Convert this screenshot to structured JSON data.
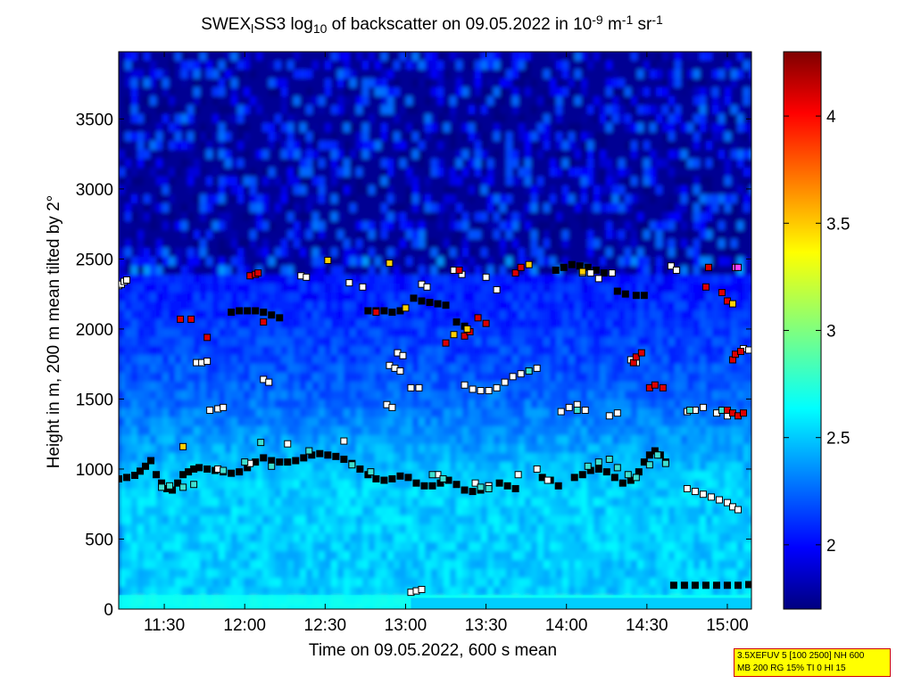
{
  "chart_data": {
    "type": "heatmap",
    "title": {
      "parts": [
        {
          "t": "SWEX",
          "s": "n"
        },
        {
          "t": "l",
          "s": "sub"
        },
        {
          "t": "SS3 log",
          "s": "n"
        },
        {
          "t": "10",
          "s": "sub"
        },
        {
          "t": " of backscatter on 09.05.2022 in 10",
          "s": "n"
        },
        {
          "t": "-9",
          "s": "sup"
        },
        {
          "t": " m",
          "s": "n"
        },
        {
          "t": "-1",
          "s": "sup"
        },
        {
          "t": " sr",
          "s": "n"
        },
        {
          "t": "-1",
          "s": "sup"
        }
      ]
    },
    "xlabel": "Time on 09.05.2022, 600 s mean",
    "ylabel": "Height in m, 200 m mean tilted by 2°",
    "x_ticks": [
      {
        "label": "11:30",
        "value": 690
      },
      {
        "label": "12:00",
        "value": 720
      },
      {
        "label": "12:30",
        "value": 750
      },
      {
        "label": "13:00",
        "value": 780
      },
      {
        "label": "13:30",
        "value": 810
      },
      {
        "label": "14:00",
        "value": 840
      },
      {
        "label": "14:30",
        "value": 870
      },
      {
        "label": "15:00",
        "value": 900
      }
    ],
    "xlim_minutes": [
      673,
      909
    ],
    "ylim": [
      0,
      3980
    ],
    "y_ticks": [
      0,
      500,
      1000,
      1500,
      2000,
      2500,
      3000,
      3500
    ],
    "colorbar": {
      "range": [
        1.7,
        4.3
      ],
      "ticks": [
        "2",
        "2.5",
        "3",
        "3.5",
        "4"
      ],
      "tick_values": [
        2,
        2.5,
        3,
        3.5,
        4
      ]
    },
    "colormap": "jet",
    "regions": [
      {
        "name": "surface-layer",
        "y": [
          0,
          100
        ],
        "value": 2.72
      },
      {
        "name": "boundary-layer",
        "y": [
          100,
          900
        ],
        "value": 2.55
      },
      {
        "name": "transition",
        "y": [
          900,
          1600
        ],
        "value": 2.35
      },
      {
        "name": "free-troposphere",
        "y": [
          1600,
          2500
        ],
        "value": 2.15
      },
      {
        "name": "upper",
        "y": [
          2500,
          3980
        ],
        "value": 1.85
      }
    ],
    "series": [
      {
        "name": "layer-1000m",
        "color": "#000000",
        "points": [
          [
            673,
            930
          ],
          [
            676,
            940
          ],
          [
            679,
            955
          ],
          [
            681,
            985
          ],
          [
            683,
            1020
          ],
          [
            685,
            1060
          ],
          [
            687,
            960
          ],
          [
            689,
            900
          ],
          [
            691,
            860
          ],
          [
            693,
            850
          ],
          [
            695,
            900
          ],
          [
            697,
            960
          ],
          [
            699,
            980
          ],
          [
            701,
            1000
          ],
          [
            703,
            1010
          ],
          [
            706,
            1000
          ],
          [
            709,
            990
          ],
          [
            712,
            980
          ],
          [
            715,
            970
          ],
          [
            718,
            980
          ],
          [
            721,
            1010
          ],
          [
            724,
            1050
          ],
          [
            727,
            1080
          ],
          [
            730,
            1060
          ],
          [
            733,
            1050
          ],
          [
            736,
            1050
          ],
          [
            739,
            1060
          ],
          [
            742,
            1080
          ],
          [
            745,
            1100
          ],
          [
            748,
            1110
          ],
          [
            751,
            1100
          ],
          [
            754,
            1090
          ],
          [
            757,
            1070
          ],
          [
            760,
            1040
          ],
          [
            763,
            1000
          ],
          [
            766,
            960
          ],
          [
            769,
            930
          ],
          [
            772,
            920
          ],
          [
            775,
            930
          ],
          [
            778,
            950
          ],
          [
            781,
            940
          ],
          [
            784,
            900
          ],
          [
            787,
            880
          ],
          [
            790,
            880
          ],
          [
            793,
            900
          ],
          [
            796,
            920
          ],
          [
            799,
            890
          ],
          [
            802,
            850
          ],
          [
            805,
            840
          ],
          [
            808,
            850
          ],
          [
            811,
            880
          ],
          [
            815,
            900
          ],
          [
            818,
            880
          ],
          [
            821,
            860
          ],
          [
            831,
            940
          ],
          [
            834,
            920
          ],
          [
            837,
            880
          ],
          [
            843,
            940
          ],
          [
            846,
            960
          ],
          [
            849,
            990
          ],
          [
            852,
            1000
          ],
          [
            855,
            980
          ],
          [
            858,
            940
          ],
          [
            861,
            900
          ],
          [
            864,
            920
          ],
          [
            867,
            980
          ],
          [
            869,
            1050
          ],
          [
            871,
            1100
          ],
          [
            873,
            1130
          ],
          [
            875,
            1100
          ],
          [
            877,
            1050
          ]
        ]
      },
      {
        "name": "layer-1000m-lower",
        "color": "#ffffff",
        "points": [
          [
            885,
            860
          ],
          [
            888,
            840
          ],
          [
            891,
            820
          ],
          [
            894,
            800
          ],
          [
            897,
            780
          ],
          [
            900,
            760
          ],
          [
            902,
            730
          ],
          [
            904,
            710
          ]
        ]
      },
      {
        "name": "surface-trace",
        "color": "#000000",
        "points": [
          [
            880,
            170
          ],
          [
            884,
            170
          ],
          [
            888,
            170
          ],
          [
            892,
            170
          ],
          [
            896,
            170
          ],
          [
            900,
            170
          ],
          [
            904,
            170
          ],
          [
            908,
            175
          ]
        ]
      },
      {
        "name": "surface-trace-early",
        "color": "#ffffff",
        "points": [
          [
            782,
            120
          ],
          [
            784,
            130
          ],
          [
            786,
            140
          ]
        ]
      },
      {
        "name": "layer-2100m",
        "color": "#000000",
        "points": [
          [
            715,
            2120
          ],
          [
            718,
            2130
          ],
          [
            721,
            2130
          ],
          [
            724,
            2130
          ],
          [
            727,
            2120
          ],
          [
            730,
            2100
          ],
          [
            733,
            2080
          ],
          [
            766,
            2130
          ],
          [
            769,
            2130
          ],
          [
            772,
            2130
          ],
          [
            775,
            2120
          ],
          [
            778,
            2130
          ],
          [
            783,
            2220
          ],
          [
            786,
            2200
          ],
          [
            789,
            2190
          ],
          [
            792,
            2180
          ],
          [
            795,
            2170
          ],
          [
            799,
            2050
          ],
          [
            802,
            2020
          ],
          [
            836,
            2420
          ],
          [
            839,
            2440
          ],
          [
            842,
            2460
          ],
          [
            845,
            2450
          ],
          [
            848,
            2440
          ],
          [
            851,
            2420
          ],
          [
            854,
            2400
          ],
          [
            859,
            2270
          ],
          [
            862,
            2250
          ],
          [
            866,
            2240
          ],
          [
            869,
            2240
          ]
        ]
      },
      {
        "name": "layer-1600m",
        "color": "#ffffff",
        "points": [
          [
            782,
            1580
          ],
          [
            785,
            1580
          ],
          [
            802,
            1600
          ],
          [
            805,
            1570
          ],
          [
            808,
            1560
          ],
          [
            811,
            1560
          ],
          [
            814,
            1580
          ],
          [
            817,
            1620
          ],
          [
            820,
            1660
          ],
          [
            823,
            1680
          ],
          [
            826,
            1700
          ],
          [
            829,
            1720
          ]
        ]
      },
      {
        "name": "layer-1400m",
        "color": "#ffffff",
        "points": [
          [
            707,
            1420
          ],
          [
            710,
            1430
          ],
          [
            712,
            1440
          ],
          [
            773,
            1460
          ],
          [
            775,
            1440
          ],
          [
            838,
            1410
          ],
          [
            841,
            1440
          ],
          [
            844,
            1460
          ],
          [
            847,
            1420
          ],
          [
            856,
            1380
          ],
          [
            859,
            1400
          ],
          [
            885,
            1410
          ],
          [
            888,
            1420
          ],
          [
            891,
            1440
          ],
          [
            896,
            1400
          ],
          [
            900,
            1380
          ]
        ]
      },
      {
        "name": "sparse-white",
        "color": "#ffffff",
        "points": [
          [
            673,
            2310
          ],
          [
            674,
            2320
          ],
          [
            675,
            2340
          ],
          [
            676,
            2350
          ],
          [
            702,
            1760
          ],
          [
            704,
            1760
          ],
          [
            706,
            1770
          ],
          [
            727,
            1640
          ],
          [
            729,
            1620
          ],
          [
            741,
            2380
          ],
          [
            743,
            2370
          ],
          [
            759,
            2330
          ],
          [
            764,
            2300
          ],
          [
            777,
            1830
          ],
          [
            779,
            1810
          ],
          [
            774,
            1740
          ],
          [
            776,
            1720
          ],
          [
            778,
            1700
          ],
          [
            786,
            2320
          ],
          [
            788,
            2300
          ],
          [
            798,
            2420
          ],
          [
            801,
            2390
          ],
          [
            810,
            2370
          ],
          [
            814,
            2280
          ],
          [
            846,
            2400
          ],
          [
            849,
            2400
          ],
          [
            852,
            2360
          ],
          [
            857,
            2400
          ],
          [
            864,
            1780
          ],
          [
            866,
            1760
          ],
          [
            879,
            2450
          ],
          [
            881,
            2420
          ],
          [
            906,
            1860
          ],
          [
            908,
            1850
          ],
          [
            710,
            1000
          ],
          [
            722,
            1040
          ],
          [
            736,
            1180
          ],
          [
            757,
            1200
          ],
          [
            792,
            960
          ],
          [
            806,
            900
          ],
          [
            811,
            880
          ],
          [
            822,
            960
          ],
          [
            829,
            1000
          ],
          [
            833,
            920
          ]
        ]
      },
      {
        "name": "teal-markers",
        "color": "#3fe0d0",
        "points": [
          [
            689,
            870
          ],
          [
            692,
            880
          ],
          [
            697,
            870
          ],
          [
            701,
            890
          ],
          [
            712,
            990
          ],
          [
            720,
            1050
          ],
          [
            726,
            1190
          ],
          [
            730,
            1020
          ],
          [
            744,
            1130
          ],
          [
            760,
            1030
          ],
          [
            767,
            980
          ],
          [
            790,
            960
          ],
          [
            794,
            930
          ],
          [
            808,
            870
          ],
          [
            811,
            860
          ],
          [
            826,
            1700
          ],
          [
            844,
            1420
          ],
          [
            848,
            1020
          ],
          [
            852,
            1050
          ],
          [
            856,
            1070
          ],
          [
            859,
            1010
          ],
          [
            863,
            960
          ],
          [
            866,
            940
          ],
          [
            871,
            1030
          ],
          [
            874,
            1100
          ],
          [
            877,
            1040
          ],
          [
            886,
            1420
          ],
          [
            898,
            1420
          ]
        ]
      },
      {
        "name": "red-markers",
        "color": "#dd0000",
        "points": [
          [
            696,
            2070
          ],
          [
            700,
            2070
          ],
          [
            706,
            1940
          ],
          [
            722,
            2380
          ],
          [
            724,
            2390
          ],
          [
            725,
            2400
          ],
          [
            727,
            2050
          ],
          [
            769,
            2120
          ],
          [
            795,
            1900
          ],
          [
            800,
            2420
          ],
          [
            802,
            1950
          ],
          [
            804,
            1980
          ],
          [
            807,
            2080
          ],
          [
            810,
            2040
          ],
          [
            821,
            2400
          ],
          [
            823,
            2440
          ],
          [
            865,
            1760
          ],
          [
            866,
            1800
          ],
          [
            868,
            1830
          ],
          [
            871,
            1580
          ],
          [
            873,
            1600
          ],
          [
            876,
            1580
          ],
          [
            892,
            2300
          ],
          [
            893,
            2440
          ],
          [
            898,
            2260
          ],
          [
            900,
            2200
          ],
          [
            902,
            1780
          ],
          [
            903,
            1820
          ],
          [
            905,
            1840
          ],
          [
            900,
            1420
          ],
          [
            902,
            1400
          ],
          [
            904,
            1380
          ],
          [
            906,
            1400
          ]
        ]
      },
      {
        "name": "yellow-markers",
        "color": "#ffd000",
        "points": [
          [
            751,
            2490
          ],
          [
            774,
            2470
          ],
          [
            780,
            2150
          ],
          [
            798,
            1960
          ],
          [
            803,
            2000
          ],
          [
            826,
            2460
          ],
          [
            846,
            2410
          ],
          [
            902,
            2180
          ],
          [
            697,
            1160
          ]
        ]
      },
      {
        "name": "magenta-markers",
        "color": "#ff40ff",
        "points": [
          [
            903,
            2440
          ],
          [
            904,
            2440
          ]
        ]
      }
    ]
  },
  "info_box": {
    "line1": "3.5XEFUV 5 [100 2500] NH 600",
    "line2": "MB 200 RG 15% TI 0 HI 15"
  }
}
